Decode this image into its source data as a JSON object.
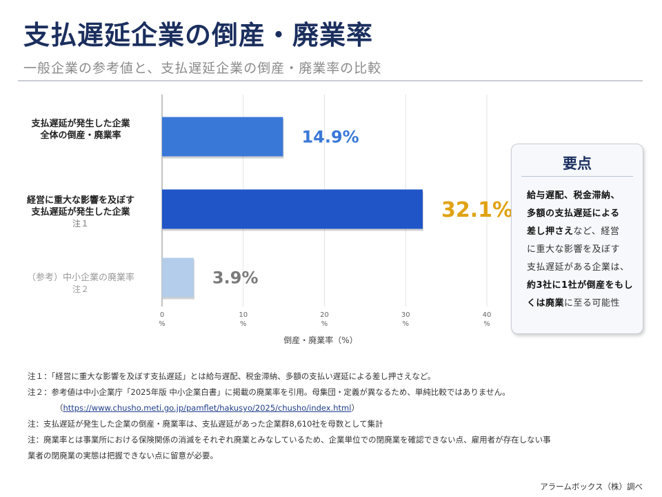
{
  "header": {
    "title": "支払遅延企業の倒産・廃業率",
    "subtitle": "一般企業の参考値と、支払遅延企業の倒産・廃業率の比較"
  },
  "chart_data": {
    "type": "bar",
    "orientation": "horizontal",
    "categories": [
      {
        "line1": "支払遅延が発生した企業",
        "line2": "全体の倒産・廃業率",
        "note": ""
      },
      {
        "line1": "経営に重大な影響を及ぼす",
        "line2": "支払遅延が発生した企業",
        "note": "注１"
      },
      {
        "line1": "（参考）中小企業の廃業率",
        "line2": "",
        "note": "注２"
      }
    ],
    "values": [
      14.9,
      32.1,
      3.9
    ],
    "value_labels": [
      "14.9%",
      "32.1%",
      "3.9%"
    ],
    "colors": [
      "#3a78d8",
      "#1f55c7",
      "#b4cdea"
    ],
    "label_colors": [
      "#3a78d8",
      "#e0a213",
      "#7a7a7a"
    ],
    "xlim": [
      0,
      40
    ],
    "ticks": [
      {
        "value": 0,
        "num": "0",
        "unit": "%"
      },
      {
        "value": 10,
        "num": "10",
        "unit": "%"
      },
      {
        "value": 20,
        "num": "20",
        "unit": "%"
      },
      {
        "value": 30,
        "num": "30",
        "unit": "%"
      },
      {
        "value": 40,
        "num": "40",
        "unit": "%"
      }
    ],
    "xlabel": "倒産・廃業率（%）",
    "grid": true
  },
  "card": {
    "title": "要点",
    "body": [
      {
        "text": "給与遅配、税金滞納、",
        "bold": true
      },
      {
        "text": "多額の支払遅延による",
        "bold": true
      },
      {
        "text": "差し押さえ",
        "bold": true,
        "rest": "など、経営"
      },
      {
        "text": "に重大な影響を及ぼす",
        "bold": false
      },
      {
        "text": "支払遅延がある企業は、",
        "bold": false
      },
      {
        "text": "約3社に1社が倒産をもし",
        "bold": true
      },
      {
        "text": "くは廃業",
        "bold": true,
        "rest": "に至る可能性"
      }
    ]
  },
  "notes": {
    "n1": "注１：「経営に重大な影響を及ぼす支払遅延」とは給与遅配、税金滞納、多額の支払い遅延による差し押さえなど。",
    "n2": "注２：参考値は中小企業庁「2025年版 中小企業白書」に掲載の廃業率を引用。母集団・定義が異なるため、単純比較ではありません。",
    "link_open": "（",
    "link": "https://www.chusho.meti.go.jp/pamflet/hakusyo/2025/chusho/index.html",
    "link_close": "）",
    "n3": "注：支払遅延が発生した企業の倒産・廃業率は、支払遅延があった企業群8,610社を母数として集計",
    "n4a": "注：廃業率とは事業所における保険関係の消滅をそれぞれ廃業とみなしているため、企業単位での閉廃業を確認できない点、雇用者が存在しない事",
    "n4b": "業者の閉廃業の実態は把握できない点に留意が必要。"
  },
  "source": "アラームボックス（株）調べ"
}
